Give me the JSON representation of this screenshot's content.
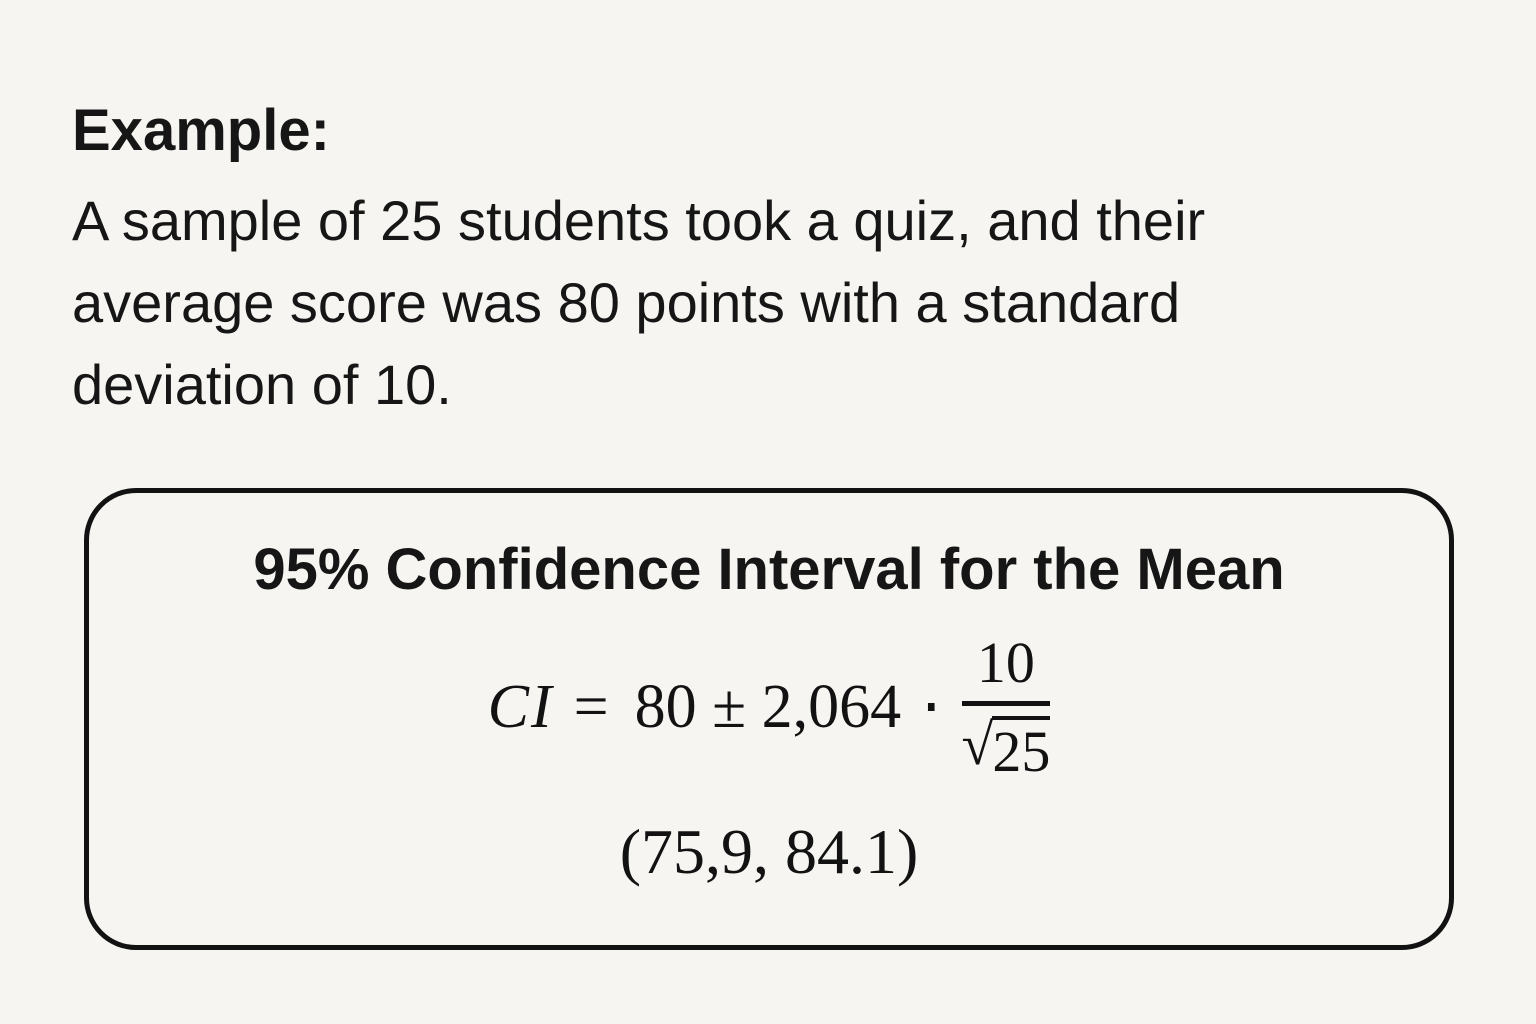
{
  "page": {
    "background_color": "#f6f5f1",
    "text_color": "#161616"
  },
  "example": {
    "heading": "Example:",
    "lines": [
      "A sample of 25 students took a quiz, and their",
      "average score was 80 points with a standard",
      "deviation of 10."
    ]
  },
  "ci_box": {
    "border_color": "#121212",
    "title": "95% Confidence Interval for the Mean",
    "formula": {
      "lhs": "CI",
      "equals": "=",
      "expression": "80 ± 2,064",
      "dot": "⋅",
      "fraction": {
        "numerator": "10",
        "radical_sign": "√",
        "radicand": "25"
      }
    },
    "result": "(75,9, 84.1)"
  }
}
